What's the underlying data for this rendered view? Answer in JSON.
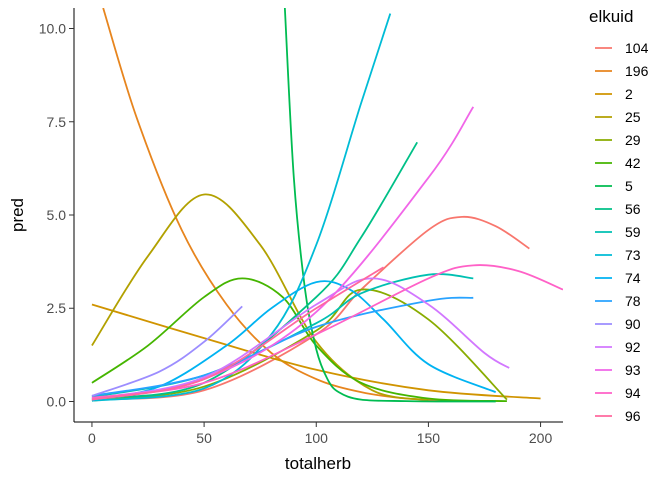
{
  "chart_data": {
    "type": "line",
    "xlabel": "totalherb",
    "ylabel": "pred",
    "xlim": [
      -8,
      210
    ],
    "ylim": [
      -0.55,
      10.55
    ],
    "xticks": [
      0,
      50,
      100,
      150,
      200
    ],
    "xtick_labels": [
      "0",
      "50",
      "100",
      "150",
      "200"
    ],
    "yticks": [
      0,
      2.5,
      5,
      7.5,
      10
    ],
    "ytick_labels": [
      "0.0",
      "2.5",
      "5.0",
      "7.5",
      "10.0"
    ],
    "grid": false,
    "legend": {
      "title": "elkuid",
      "position": "right"
    },
    "series": [
      {
        "name": "104",
        "color": "#F8766D",
        "x": [
          0,
          50,
          100,
          120,
          150,
          165,
          180,
          195
        ],
        "y": [
          0.05,
          0.3,
          1.8,
          3.0,
          4.6,
          4.95,
          4.7,
          4.1
        ]
      },
      {
        "name": "196",
        "color": "#E7851E",
        "x": [
          5,
          20,
          40,
          60,
          80,
          100,
          120,
          140,
          160
        ],
        "y": [
          10.55,
          7.6,
          4.6,
          2.6,
          1.3,
          0.6,
          0.25,
          0.08,
          0.02
        ]
      },
      {
        "name": "2",
        "color": "#D09400",
        "x": [
          0,
          50,
          100,
          150,
          200
        ],
        "y": [
          2.6,
          1.7,
          0.85,
          0.3,
          0.08
        ]
      },
      {
        "name": "25",
        "color": "#B2A100",
        "x": [
          0,
          25,
          50,
          75,
          100,
          125,
          150
        ],
        "y": [
          1.5,
          3.9,
          5.55,
          4.2,
          1.6,
          0.3,
          0.04
        ]
      },
      {
        "name": "29",
        "color": "#89AC00",
        "x": [
          0,
          50,
          100,
          120,
          150,
          185
        ],
        "y": [
          0.02,
          0.4,
          1.9,
          3.0,
          2.2,
          0.05
        ]
      },
      {
        "name": "42",
        "color": "#45B500",
        "x": [
          0,
          25,
          50,
          67,
          85,
          100,
          120,
          150,
          185
        ],
        "y": [
          0.5,
          1.5,
          2.8,
          3.3,
          2.8,
          1.5,
          0.5,
          0.08,
          0.01
        ]
      },
      {
        "name": "5",
        "color": "#00BC51",
        "x": [
          86,
          90,
          95,
          100,
          105,
          110,
          120,
          140,
          160,
          180
        ],
        "y": [
          10.55,
          6.0,
          3.0,
          1.4,
          0.6,
          0.25,
          0.05,
          0.01,
          0,
          0
        ]
      },
      {
        "name": "56",
        "color": "#00C087",
        "x": [
          0,
          50,
          100,
          120,
          145
        ],
        "y": [
          0.08,
          0.5,
          2.8,
          4.4,
          6.95
        ]
      },
      {
        "name": "59",
        "color": "#00C0B2",
        "x": [
          0,
          50,
          100,
          120,
          150,
          170
        ],
        "y": [
          0.12,
          0.7,
          2.1,
          2.9,
          3.4,
          3.3
        ]
      },
      {
        "name": "73",
        "color": "#00BCD6",
        "x": [
          0,
          50,
          80,
          100,
          120,
          133
        ],
        "y": [
          0.02,
          0.35,
          1.8,
          4.2,
          8.0,
          10.4
        ]
      },
      {
        "name": "74",
        "color": "#00B3F2",
        "x": [
          0,
          30,
          60,
          80,
          100,
          115,
          130,
          150,
          180
        ],
        "y": [
          0.05,
          0.4,
          1.5,
          2.5,
          3.2,
          3.0,
          2.2,
          1.0,
          0.25
        ]
      },
      {
        "name": "78",
        "color": "#29A3FF",
        "x": [
          0,
          50,
          100,
          150,
          170
        ],
        "y": [
          0.15,
          0.7,
          2.0,
          2.7,
          2.78
        ]
      },
      {
        "name": "90",
        "color": "#9C8DFF",
        "x": [
          0,
          30,
          50,
          67
        ],
        "y": [
          0.15,
          0.8,
          1.6,
          2.55
        ]
      },
      {
        "name": "92",
        "color": "#D277FF",
        "x": [
          0,
          50,
          100,
          125,
          150,
          175,
          186
        ],
        "y": [
          0.08,
          0.65,
          2.6,
          3.3,
          2.6,
          1.3,
          0.9
        ]
      },
      {
        "name": "93",
        "color": "#F166E8",
        "x": [
          0,
          50,
          100,
          150,
          170
        ],
        "y": [
          0.05,
          0.6,
          2.4,
          6.0,
          7.9
        ]
      },
      {
        "name": "94",
        "color": "#FF61C7",
        "x": [
          0,
          50,
          100,
          150,
          170,
          190,
          210
        ],
        "y": [
          0.1,
          0.5,
          1.8,
          3.3,
          3.65,
          3.5,
          3.0
        ]
      },
      {
        "name": "96",
        "color": "#FF689E",
        "x": [
          0,
          50,
          100,
          130
        ],
        "y": [
          0.05,
          0.6,
          2.5,
          3.6
        ]
      }
    ]
  }
}
